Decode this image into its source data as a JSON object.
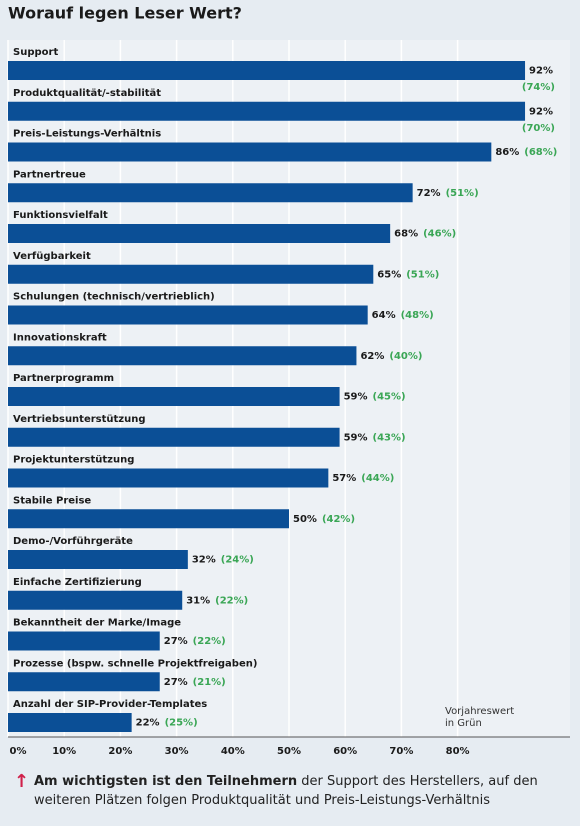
{
  "chart_data": {
    "type": "bar",
    "orientation": "horizontal",
    "title": "Worauf legen Leser Wert?",
    "categories": [
      "Support",
      "Produktqualität/-stabilität",
      "Preis-Leistungs-Verhältnis",
      "Partnertreue",
      "Funktionsvielfalt",
      "Verfügbarkeit",
      "Schulungen (technisch/vertrieblich)",
      "Innovationskraft",
      "Partnerprogramm",
      "Vertriebsunterstützung",
      "Projektunterstützung",
      "Stabile Preise",
      "Demo-/Vorführgeräte",
      "Einfache Zertifizierung",
      "Bekanntheit der Marke/Image",
      "Prozesse (bspw. schnelle Projektfreigaben)",
      "Anzahl der SIP-Provider-Templates"
    ],
    "series": [
      {
        "color": "#0b4f96",
        "values": [
          92,
          92,
          86,
          72,
          68,
          65,
          64,
          62,
          59,
          59,
          57,
          50,
          32,
          31,
          27,
          27,
          22
        ],
        "value_labels": [
          "92%",
          "92%",
          "86%",
          "72%",
          "68%",
          "65%",
          "64%",
          "62%",
          "59%",
          "59%",
          "57%",
          "50%",
          "32%",
          "31%",
          "27%",
          "27%",
          "22%"
        ]
      },
      {
        "color": "#3aa655",
        "values": [
          74,
          70,
          68,
          51,
          46,
          51,
          48,
          40,
          45,
          43,
          44,
          42,
          24,
          22,
          22,
          21,
          25
        ],
        "value_labels": [
          "(74%)",
          "(70%)",
          "(68%)",
          "(51%)",
          "(46%)",
          "(51%)",
          "(48%)",
          "(40%)",
          "(45%)",
          "(43%)",
          "(44%)",
          "(42%)",
          "(24%)",
          "(22%)",
          "(22%)",
          "(21%)",
          "(25%)"
        ]
      }
    ],
    "xlim": [
      0,
      100
    ],
    "xticks": [
      {
        "value": 0,
        "label": "0%"
      },
      {
        "value": 10,
        "label": "10%"
      },
      {
        "value": 20,
        "label": "20%"
      },
      {
        "value": 30,
        "label": "30%"
      },
      {
        "value": 40,
        "label": "40%"
      },
      {
        "value": 50,
        "label": "50%"
      },
      {
        "value": 60,
        "label": "60%"
      },
      {
        "value": 70,
        "label": "70%"
      },
      {
        "value": 80,
        "label": "80%"
      }
    ],
    "grid": true,
    "annotation": [
      "Vorjahreswert",
      "in Grün"
    ],
    "footer": {
      "bold": "Am wichtigsten ist den Teilnehmern",
      "text": " der Support des Herstellers, auf den weiteren Plätzen folgen Produktqualität und Preis-Leistungs-Verhältnis"
    }
  }
}
